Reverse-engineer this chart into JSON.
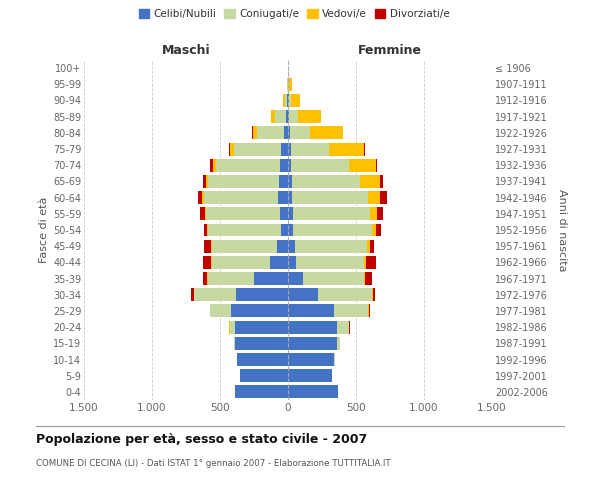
{
  "age_groups": [
    "0-4",
    "5-9",
    "10-14",
    "15-19",
    "20-24",
    "25-29",
    "30-34",
    "35-39",
    "40-44",
    "45-49",
    "50-54",
    "55-59",
    "60-64",
    "65-69",
    "70-74",
    "75-79",
    "80-84",
    "85-89",
    "90-94",
    "95-99",
    "100+"
  ],
  "birth_years": [
    "2002-2006",
    "1997-2001",
    "1992-1996",
    "1987-1991",
    "1982-1986",
    "1977-1981",
    "1972-1976",
    "1967-1971",
    "1962-1966",
    "1957-1961",
    "1952-1956",
    "1947-1951",
    "1942-1946",
    "1937-1941",
    "1932-1936",
    "1927-1931",
    "1922-1926",
    "1917-1921",
    "1912-1916",
    "1907-1911",
    "≤ 1906"
  ],
  "maschi": {
    "celibi": [
      390,
      350,
      375,
      390,
      390,
      420,
      380,
      250,
      130,
      80,
      55,
      60,
      70,
      65,
      60,
      50,
      30,
      15,
      5,
      2,
      0
    ],
    "coniugati": [
      0,
      0,
      2,
      10,
      40,
      150,
      310,
      340,
      430,
      480,
      530,
      540,
      550,
      520,
      470,
      350,
      200,
      80,
      20,
      5,
      0
    ],
    "vedovi": [
      0,
      0,
      0,
      0,
      2,
      2,
      2,
      2,
      3,
      5,
      8,
      12,
      15,
      15,
      25,
      30,
      30,
      30,
      15,
      3,
      0
    ],
    "divorziati": [
      0,
      0,
      0,
      0,
      3,
      5,
      20,
      35,
      65,
      50,
      28,
      35,
      30,
      22,
      18,
      5,
      3,
      2,
      0,
      0,
      0
    ]
  },
  "femmine": {
    "nubili": [
      370,
      320,
      340,
      360,
      360,
      340,
      220,
      110,
      60,
      50,
      40,
      35,
      30,
      30,
      25,
      20,
      15,
      10,
      5,
      2,
      0
    ],
    "coniugate": [
      0,
      0,
      5,
      20,
      90,
      250,
      400,
      450,
      500,
      530,
      580,
      570,
      560,
      500,
      420,
      280,
      150,
      60,
      15,
      5,
      0
    ],
    "vedove": [
      0,
      0,
      0,
      0,
      2,
      3,
      3,
      5,
      10,
      20,
      30,
      50,
      90,
      150,
      200,
      260,
      240,
      170,
      70,
      25,
      0
    ],
    "divorziate": [
      0,
      0,
      0,
      0,
      3,
      8,
      20,
      50,
      80,
      35,
      35,
      45,
      50,
      20,
      10,
      5,
      3,
      2,
      0,
      0,
      0
    ]
  },
  "colors": {
    "celibi": "#4472c4",
    "coniugati": "#c5d9a0",
    "vedovi": "#ffc000",
    "divorziati": "#c00000"
  },
  "legend_labels": [
    "Celibi/Nubili",
    "Coniugati/e",
    "Vedovi/e",
    "Divorziati/e"
  ],
  "title": "Popolazione per età, sesso e stato civile - 2007",
  "subtitle": "COMUNE DI CECINA (LI) - Dati ISTAT 1° gennaio 2007 - Elaborazione TUTTITALIA.IT",
  "ylabel_left": "Fasce di età",
  "ylabel_right": "Anni di nascita",
  "xlabel_left": "Maschi",
  "xlabel_right": "Femmine",
  "xlim": 1500
}
